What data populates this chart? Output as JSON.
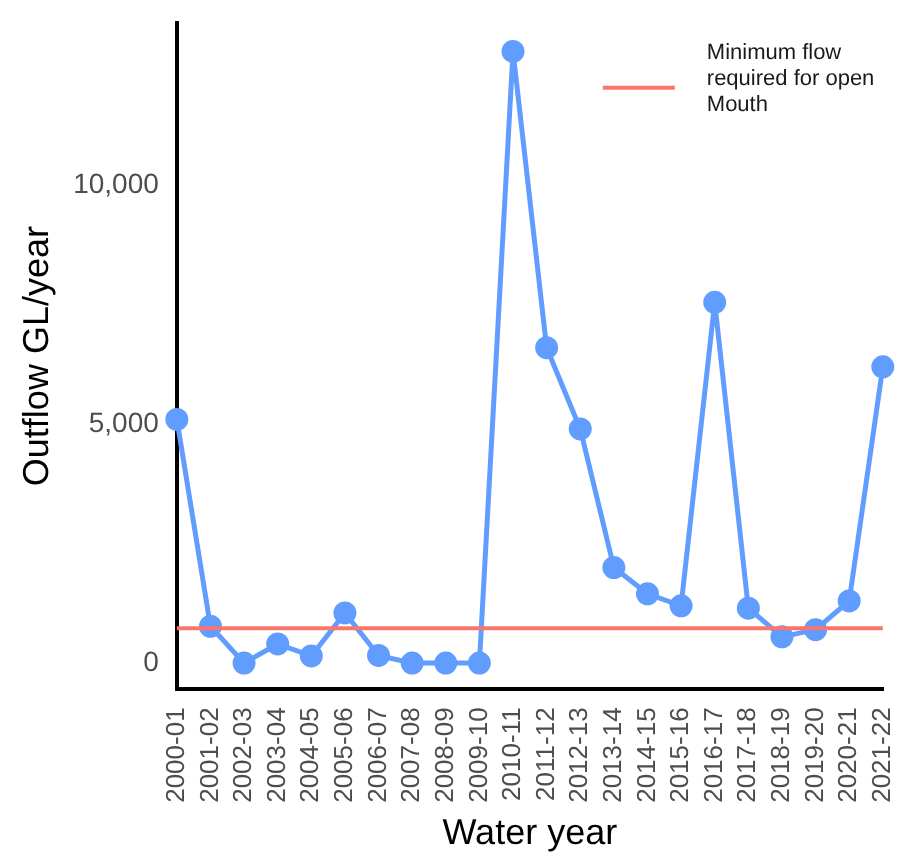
{
  "chart_data": {
    "type": "line",
    "xlabel": "Water year",
    "ylabel": "Outflow GL/year",
    "categories": [
      "2000-01",
      "2001-02",
      "2002-03",
      "2003-04",
      "2004-05",
      "2005-06",
      "2006-07",
      "2007-08",
      "2008-09",
      "2009-10",
      "2010-11",
      "2011-12",
      "2012-13",
      "2013-14",
      "2014-15",
      "2015-16",
      "2016-17",
      "2017-18",
      "2018-19",
      "2019-20",
      "2020-21",
      "2021-22"
    ],
    "series": [
      {
        "color": "#619cff",
        "values": [
          5100,
          770,
          0,
          400,
          150,
          1050,
          160,
          0,
          0,
          0,
          12800,
          6600,
          4900,
          2000,
          1450,
          1200,
          7550,
          1150,
          550,
          700,
          1300,
          6200
        ]
      }
    ],
    "ylim": [
      -550,
      13400
    ],
    "yticks": [
      {
        "value": 0,
        "label": "0"
      },
      {
        "value": 5000,
        "label": "5,000"
      },
      {
        "value": 10000,
        "label": "10,000"
      }
    ],
    "ref_lines": [
      {
        "axis": "y",
        "value": 730,
        "label": "Minimum flow required for open Mouth",
        "color": "#f8766d"
      }
    ],
    "legend": "top right",
    "marker": "circle",
    "line_style": "solid",
    "grid": false
  }
}
